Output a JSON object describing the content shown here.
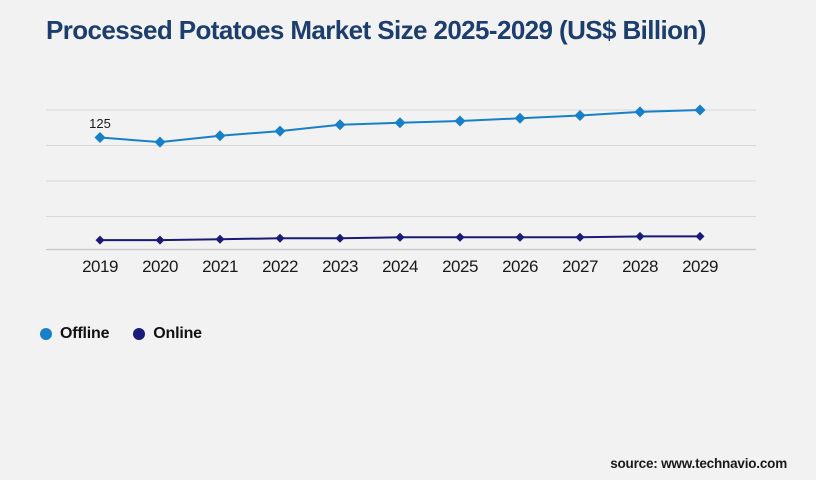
{
  "title": {
    "text": "Processed Potatoes Market Size 2025-2029 (US$ Billion)",
    "color": "#1c3e6e"
  },
  "legend": {
    "items": [
      {
        "label": "Offline",
        "color": "#1780c9"
      },
      {
        "label": "Online",
        "color": "#1a1a78"
      }
    ]
  },
  "source": {
    "text": "source: www.technavio.com"
  },
  "chart_data": {
    "type": "line",
    "title": "Processed Potatoes Market Size 2025-2029 (US$ Billion)",
    "unit": "US$ Billion",
    "categories": [
      "2019",
      "2020",
      "2021",
      "2022",
      "2023",
      "2024",
      "2025",
      "2026",
      "2027",
      "2028",
      "2029"
    ],
    "series": [
      {
        "name": "Offline",
        "color": "#1780c9",
        "marker": "diamond",
        "values": [
          125,
          120,
          127,
          132,
          139,
          141,
          143,
          146,
          149,
          153,
          155
        ]
      },
      {
        "name": "Online",
        "color": "#1a1a78",
        "marker": "diamond",
        "values": [
          13,
          13,
          14,
          15,
          15,
          16,
          16,
          16,
          16,
          17,
          17
        ]
      }
    ],
    "annotations": [
      {
        "series": "Offline",
        "category": "2019",
        "text": "125"
      }
    ],
    "ylim": [
      0,
      170
    ],
    "grid": "horizontal",
    "legend_position": "bottom-left",
    "gridline_color": "#d8d8d8",
    "axis_line_color": "#c6c6c8",
    "tick_label_color": "#1a1a1a",
    "annotation_color": "#1a1a1a"
  }
}
